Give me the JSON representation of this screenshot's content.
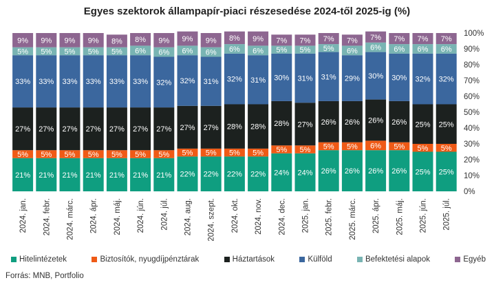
{
  "title": "Egyes szektorok állampapír-piaci részesedése 2024-től 2025-ig (%)",
  "source": "Forrás:  MNB, Portfolio",
  "chart_data": {
    "type": "bar",
    "stacked": true,
    "title": "Egyes szektorok állampapír-piaci részesedése 2024-től 2025-ig (%)",
    "categories": [
      "2024. jan.",
      "2024. febr.",
      "2024. márc.",
      "2024. ápr.",
      "2024. máj.",
      "2024. jún.",
      "2024. júl.",
      "2024. aug.",
      "2024. szept.",
      "2024. okt.",
      "2024. nov.",
      "2024. dec.",
      "2025. jan.",
      "2025. febr.",
      "2025. márc.",
      "2025. ápr.",
      "2025. máj.",
      "2025. jún.",
      "2025. júl."
    ],
    "series": [
      {
        "name": "Hitelintézetek",
        "color": "#0f9e80",
        "values": [
          21,
          21,
          21,
          21,
          21,
          21,
          21,
          22,
          22,
          22,
          22,
          24,
          24,
          26,
          26,
          26,
          26,
          25,
          25
        ]
      },
      {
        "name": "Biztosítók, nyugdíjpénztárak",
        "color": "#ef5a16",
        "values": [
          5,
          5,
          5,
          5,
          5,
          5,
          5,
          5,
          5,
          5,
          5,
          5,
          5,
          5,
          5,
          6,
          5,
          5,
          5
        ]
      },
      {
        "name": "Háztartások",
        "color": "#1c211f",
        "values": [
          27,
          27,
          27,
          27,
          27,
          27,
          27,
          27,
          27,
          28,
          28,
          28,
          27,
          26,
          26,
          26,
          26,
          25,
          25
        ]
      },
      {
        "name": "Külföld",
        "color": "#3b679e",
        "values": [
          33,
          33,
          33,
          33,
          33,
          33,
          32,
          32,
          31,
          32,
          31,
          30,
          31,
          31,
          29,
          30,
          30,
          32,
          32
        ]
      },
      {
        "name": "Befektetési alapok",
        "color": "#79b4b3",
        "values": [
          5,
          5,
          5,
          5,
          5,
          6,
          6,
          6,
          6,
          6,
          6,
          5,
          5,
          5,
          6,
          6,
          6,
          6,
          6
        ]
      },
      {
        "name": "Egyéb",
        "color": "#8d6690",
        "values": [
          9,
          9,
          9,
          9,
          8,
          8,
          9,
          9,
          9,
          8,
          9,
          7,
          7,
          7,
          7,
          7,
          7,
          7,
          7
        ]
      }
    ],
    "ylim": [
      0,
      100
    ],
    "yticks": [
      "0%",
      "10%",
      "20%",
      "30%",
      "40%",
      "50%",
      "60%",
      "70%",
      "80%",
      "90%",
      "100%"
    ],
    "legend_position": "bottom",
    "grid": false
  }
}
